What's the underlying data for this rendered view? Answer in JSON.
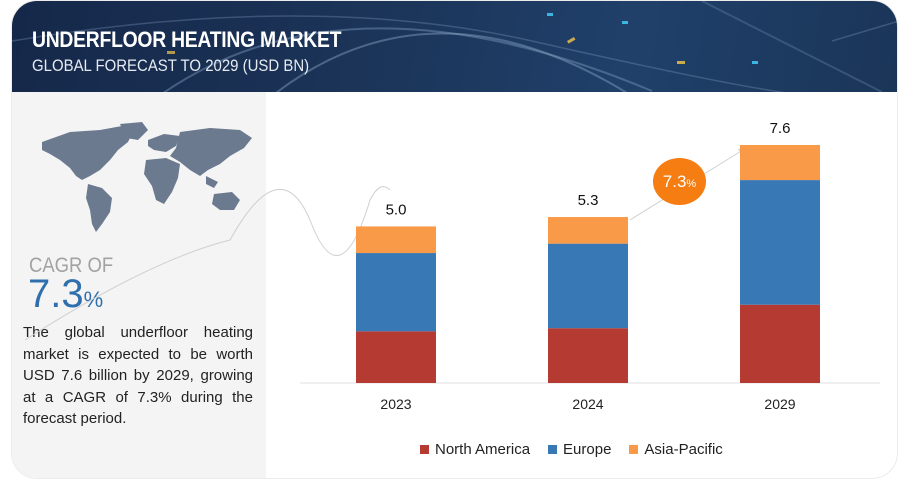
{
  "header": {
    "title": "UNDERFLOOR HEATING MARKET",
    "subtitle": "GLOBAL FORECAST TO 2029 (USD BN)"
  },
  "sidebar": {
    "map_icon": "world-map-icon",
    "cagr_label": "CAGR OF",
    "cagr_value": "7.3",
    "cagr_unit": "%",
    "description": "The global underfloor heating market is expected to be worth USD 7.6 billion by 2029, growing at a CAGR of 7.3% during the forecast period."
  },
  "growth_bubble": {
    "value": "7.3",
    "unit": "%"
  },
  "colors": {
    "north_america": "#b53a32",
    "europe": "#3878b4",
    "asia_pacific": "#f99a48",
    "bubble": "#f57d12",
    "cagr_text": "#2f6fad"
  },
  "chart_data": {
    "type": "bar",
    "stacked": true,
    "title": "UNDERFLOOR HEATING MARKET",
    "subtitle": "GLOBAL FORECAST TO 2029 (USD BN)",
    "xlabel": "",
    "ylabel": "",
    "categories": [
      "2023",
      "2024",
      "2029"
    ],
    "totals": [
      5.0,
      5.3,
      7.6
    ],
    "total_labels": [
      "5.0",
      "5.3",
      "7.6"
    ],
    "series": [
      {
        "name": "North America",
        "color": "#b53a32",
        "values": [
          1.65,
          1.75,
          2.5
        ]
      },
      {
        "name": "Europe",
        "color": "#3878b4",
        "values": [
          2.5,
          2.7,
          3.98
        ]
      },
      {
        "name": "Asia-Pacific",
        "color": "#f99a48",
        "values": [
          0.85,
          0.85,
          1.12
        ]
      }
    ],
    "ylim": [
      0,
      7.6
    ],
    "grid": false,
    "legend_position": "bottom",
    "annotations": [
      "CAGR 7.3% (2024-2029)"
    ]
  }
}
